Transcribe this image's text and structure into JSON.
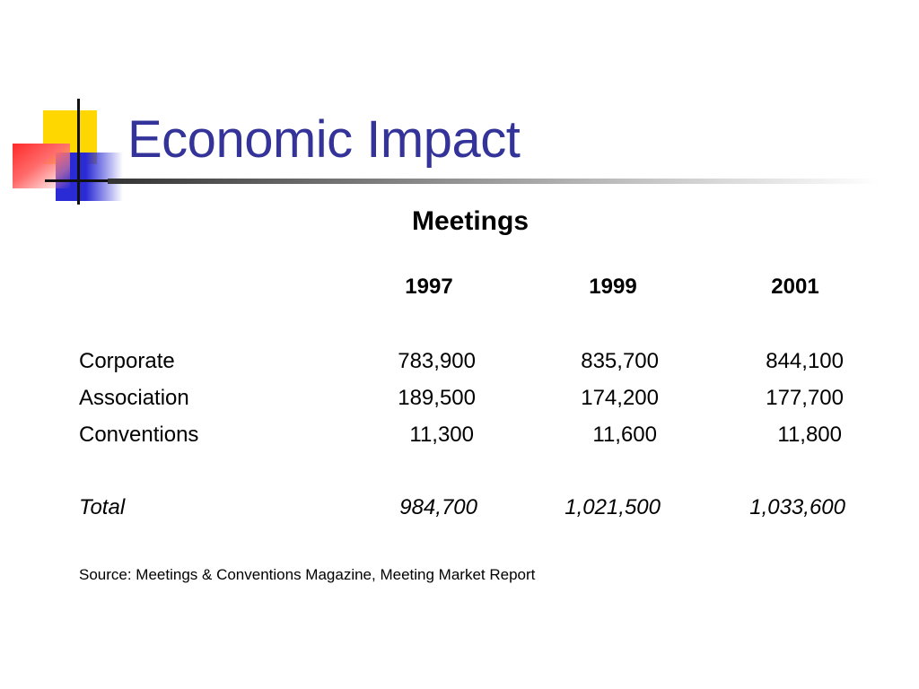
{
  "slide": {
    "title": "Economic Impact"
  },
  "table": {
    "heading": "Meetings",
    "columns": [
      "1997",
      "1999",
      "2001"
    ],
    "rows": [
      {
        "label": "Corporate",
        "values": [
          "783,900",
          "835,700",
          "844,100"
        ]
      },
      {
        "label": "Association",
        "values": [
          "189,500",
          "174,200",
          "177,700"
        ]
      },
      {
        "label": "Conventions",
        "values": [
          "11,300",
          "11,600",
          "11,800"
        ]
      }
    ],
    "total": {
      "label": "Total",
      "values": [
        "984,700",
        "1,021,500",
        "1,033,600"
      ]
    }
  },
  "source": "Source: Meetings & Conventions Magazine, Meeting Market Report",
  "colors": {
    "title": "#333399",
    "logo_yellow": "#ffd700",
    "logo_blue": "#2b2bd6",
    "logo_red": "#ff2a2a"
  }
}
